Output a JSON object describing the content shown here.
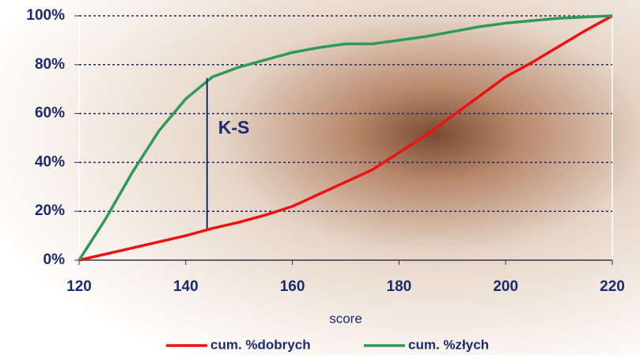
{
  "chart_data": {
    "type": "line",
    "x": [
      120,
      125,
      130,
      135,
      140,
      145,
      150,
      155,
      160,
      165,
      170,
      175,
      180,
      185,
      190,
      195,
      200,
      205,
      210,
      215,
      220
    ],
    "series": [
      {
        "name": "cum. %dobrych",
        "color": "#ee1111",
        "values": [
          0,
          2.5,
          5,
          7.5,
          10,
          13,
          15.5,
          18.5,
          22,
          27,
          32,
          37,
          44,
          51,
          59,
          67,
          75,
          81,
          87.5,
          94,
          100
        ]
      },
      {
        "name": "cum. %złych",
        "color": "#2e9a5a",
        "values": [
          0,
          17,
          36,
          53,
          66,
          75,
          79,
          82,
          85,
          87,
          88.5,
          88.5,
          90,
          91.5,
          93.5,
          95.5,
          97,
          98,
          99,
          99.5,
          100
        ]
      }
    ],
    "xlabel": "score",
    "xlim": [
      120,
      220
    ],
    "xticks": [
      120,
      140,
      160,
      180,
      200,
      220
    ],
    "ylim": [
      0,
      100
    ],
    "yticks": [
      {
        "value": 0,
        "label": "0%"
      },
      {
        "value": 20,
        "label": "20%"
      },
      {
        "value": 40,
        "label": "40%"
      },
      {
        "value": 60,
        "label": "60%"
      },
      {
        "value": 80,
        "label": "80%"
      },
      {
        "value": 100,
        "label": "100%"
      }
    ],
    "grid": true,
    "annotation": {
      "text": "K-S",
      "x": 144,
      "from": 13,
      "to": 74.5
    }
  }
}
